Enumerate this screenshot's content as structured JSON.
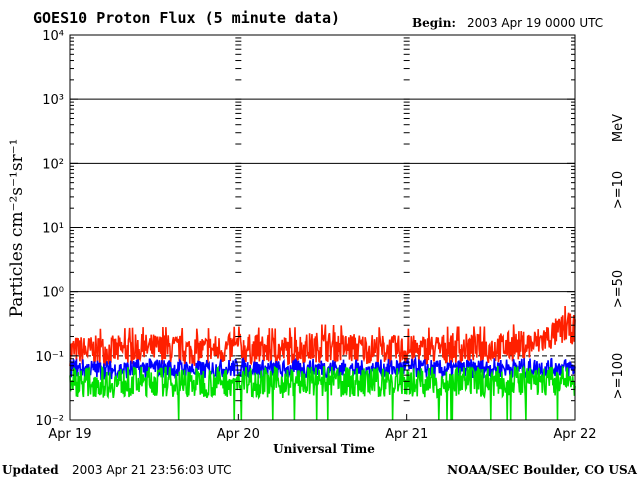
{
  "header": {
    "title": "GOES10 Proton Flux (5 minute data)",
    "begin_label": "Begin:",
    "begin_value": "2003 Apr 19 0000 UTC"
  },
  "footer": {
    "updated_label": "Updated",
    "updated_value": "2003 Apr 21 23:56:03 UTC",
    "credit": "NOAA/SEC Boulder, CO USA"
  },
  "chart_data": {
    "type": "line",
    "title": "GOES10 Proton Flux (5 minute data)",
    "xlabel": "Universal Time",
    "ylabel": "Particles cm⁻²s⁻¹sr⁻¹",
    "yscale": "log",
    "ylim": [
      0.01,
      10000
    ],
    "xlim": [
      "2003-04-19T00:00Z",
      "2003-04-22T00:00Z"
    ],
    "x_ticks": [
      "Apr 19",
      "Apr 20",
      "Apr 21",
      "Apr 22"
    ],
    "y_ticks": [
      "10⁻²",
      "10⁻¹",
      "10⁰",
      "10¹",
      "10²",
      "10³",
      "10⁴"
    ],
    "y_tick_exponents": [
      -2,
      -1,
      0,
      1,
      2,
      3,
      4
    ],
    "threshold_lines": [
      {
        "value": 10,
        "style": "dashed"
      },
      {
        "value": 0.1,
        "style": "dashed"
      }
    ],
    "energy_unit": "MeV",
    "series": [
      {
        "name": ">=10",
        "color": "#ff2000",
        "x_day": [
          0,
          0.25,
          0.5,
          0.75,
          1,
          1.25,
          1.5,
          1.75,
          2,
          2.25,
          2.5,
          2.75,
          2.85,
          2.95,
          3
        ],
        "values": [
          0.12,
          0.12,
          0.13,
          0.12,
          0.13,
          0.12,
          0.14,
          0.13,
          0.12,
          0.13,
          0.13,
          0.15,
          0.2,
          0.28,
          0.25
        ]
      },
      {
        "name": ">=50",
        "color": "#0000ff",
        "x_day": [
          0,
          0.25,
          0.5,
          0.75,
          1,
          1.25,
          1.5,
          1.75,
          2,
          2.25,
          2.5,
          2.75,
          3
        ],
        "values": [
          0.065,
          0.06,
          0.065,
          0.06,
          0.065,
          0.06,
          0.065,
          0.06,
          0.065,
          0.06,
          0.065,
          0.065,
          0.065
        ]
      },
      {
        "name": ">=100",
        "color": "#00e000",
        "x_day": [
          0,
          0.25,
          0.5,
          0.75,
          1,
          1.25,
          1.5,
          1.75,
          2,
          2.25,
          2.5,
          2.75,
          3
        ],
        "values": [
          0.04,
          0.038,
          0.04,
          0.038,
          0.04,
          0.038,
          0.04,
          0.038,
          0.04,
          0.038,
          0.04,
          0.04,
          0.04
        ]
      }
    ]
  }
}
